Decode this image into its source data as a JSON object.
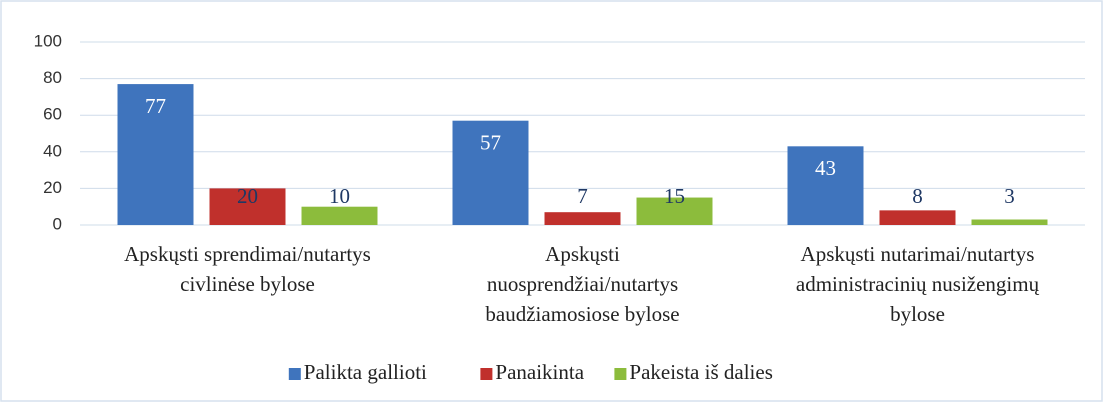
{
  "chart_data": {
    "type": "bar",
    "categories": [
      [
        "Apskųsti sprendimai/nutartys",
        "civlinėse bylose"
      ],
      [
        "Apskųsti",
        "nuosprendžiai/nutartys",
        "baudžiamosiose bylose"
      ],
      [
        "Apskųsti nutarimai/nutartys",
        "administracinių nusižengimų",
        "bylose"
      ]
    ],
    "series": [
      {
        "name": "Palikta galliotі",
        "color": "#3f74bd",
        "values": [
          77,
          57,
          43
        ]
      },
      {
        "name": "Panaikinta",
        "color": "#c0302c",
        "values": [
          20,
          7,
          8
        ]
      },
      {
        "name": "Pakeista iš dalies",
        "color": "#8cbc3c",
        "values": [
          10,
          15,
          3
        ]
      }
    ],
    "ylim": [
      0,
      100
    ],
    "yticks": [
      0,
      20,
      40,
      60,
      80,
      100
    ],
    "grid": true,
    "legend": "bottom"
  }
}
